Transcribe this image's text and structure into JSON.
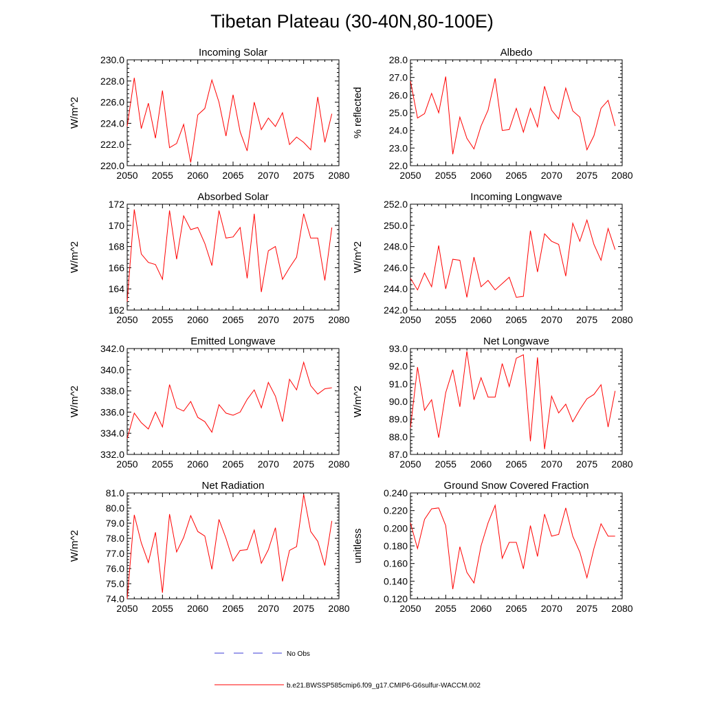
{
  "title": "Tibetan Plateau (30-40N,80-100E)",
  "legend": {
    "items": [
      {
        "label": "No Obs",
        "color": "#3b3bd6",
        "style": "dashed"
      },
      {
        "label": "b.e21.BWSSP585cmip6.f09_g17.CMIP6-G6sulfur-WACCM.002",
        "color": "#ff0000",
        "style": "solid"
      }
    ]
  },
  "chart_data": [
    {
      "type": "line",
      "title": "Incoming Solar",
      "ylabel": "W/m^2",
      "xlabel": "",
      "xlim": [
        2050,
        2080
      ],
      "ylim": [
        220.0,
        230.0
      ],
      "xticks": [
        "2050",
        "2055",
        "2060",
        "2065",
        "2070",
        "2075",
        "2080"
      ],
      "yticks": [
        "220.0",
        "222.0",
        "224.0",
        "226.0",
        "228.0",
        "230.0"
      ],
      "series": [
        {
          "color": "#ff0000",
          "x_start": 2050,
          "values": [
            223.7,
            228.3,
            223.5,
            225.9,
            222.6,
            227.1,
            221.7,
            222.1,
            223.9,
            220.3,
            224.8,
            225.4,
            228.1,
            226.0,
            222.8,
            226.7,
            223.2,
            221.4,
            226.0,
            223.4,
            224.5,
            223.7,
            225.0,
            222.0,
            222.7,
            222.2,
            221.5,
            226.5,
            222.2,
            224.9
          ]
        }
      ]
    },
    {
      "type": "line",
      "title": "Albedo",
      "ylabel": "% reflected",
      "xlabel": "",
      "xlim": [
        2050,
        2080
      ],
      "ylim": [
        22.0,
        28.0
      ],
      "xticks": [
        "2050",
        "2055",
        "2060",
        "2065",
        "2070",
        "2075",
        "2080"
      ],
      "yticks": [
        "22.0",
        "23.0",
        "24.0",
        "25.0",
        "26.0",
        "27.0",
        "28.0"
      ],
      "series": [
        {
          "color": "#ff0000",
          "x_start": 2050,
          "values": [
            26.8,
            24.7,
            24.95,
            26.1,
            25.0,
            27.05,
            22.65,
            24.75,
            23.55,
            22.95,
            24.25,
            25.15,
            26.95,
            24.0,
            24.05,
            25.25,
            23.9,
            25.25,
            24.2,
            26.5,
            25.15,
            24.65,
            26.4,
            25.1,
            24.75,
            22.9,
            23.7,
            25.25,
            25.7,
            24.25
          ]
        }
      ]
    },
    {
      "type": "line",
      "title": "Absorbed Solar",
      "ylabel": "W/m^2",
      "xlabel": "",
      "xlim": [
        2050,
        2080
      ],
      "ylim": [
        162,
        172
      ],
      "xticks": [
        "2050",
        "2055",
        "2060",
        "2065",
        "2070",
        "2075",
        "2080"
      ],
      "yticks": [
        "162",
        "164",
        "166",
        "168",
        "170",
        "172"
      ],
      "series": [
        {
          "color": "#ff0000",
          "x_start": 2050,
          "values": [
            162.8,
            171.5,
            167.3,
            166.5,
            166.3,
            164.9,
            171.4,
            166.8,
            170.9,
            169.6,
            169.8,
            168.3,
            166.2,
            171.4,
            168.8,
            168.9,
            169.8,
            165.0,
            171.1,
            163.7,
            167.6,
            168.0,
            164.9,
            166.0,
            167.0,
            171.1,
            168.8,
            168.8,
            164.8,
            169.8
          ]
        }
      ]
    },
    {
      "type": "line",
      "title": "Incoming Longwave",
      "ylabel": "W/m^2",
      "xlabel": "",
      "xlim": [
        2050,
        2080
      ],
      "ylim": [
        242.0,
        252.0
      ],
      "xticks": [
        "2050",
        "2055",
        "2060",
        "2065",
        "2070",
        "2075",
        "2080"
      ],
      "yticks": [
        "242.0",
        "244.0",
        "246.0",
        "248.0",
        "250.0",
        "252.0"
      ],
      "series": [
        {
          "color": "#ff0000",
          "x_start": 2050,
          "values": [
            245.0,
            243.9,
            245.5,
            244.2,
            248.1,
            244.0,
            246.8,
            246.7,
            243.2,
            247.0,
            244.2,
            244.8,
            243.9,
            244.5,
            245.1,
            243.2,
            243.3,
            249.5,
            245.6,
            249.2,
            248.5,
            248.2,
            245.2,
            250.2,
            248.5,
            250.5,
            248.2,
            246.7,
            249.7,
            247.7
          ]
        }
      ]
    },
    {
      "type": "line",
      "title": "Emitted Longwave",
      "ylabel": "W/m^2",
      "xlabel": "",
      "xlim": [
        2050,
        2080
      ],
      "ylim": [
        332.0,
        342.0
      ],
      "xticks": [
        "2050",
        "2055",
        "2060",
        "2065",
        "2070",
        "2075",
        "2080"
      ],
      "yticks": [
        "332.0",
        "334.0",
        "336.0",
        "338.0",
        "340.0",
        "342.0"
      ],
      "series": [
        {
          "color": "#ff0000",
          "x_start": 2050,
          "values": [
            333.5,
            335.9,
            335.0,
            334.4,
            336.0,
            334.6,
            338.6,
            336.4,
            336.1,
            337.0,
            335.5,
            335.1,
            334.1,
            336.7,
            335.9,
            335.7,
            336.0,
            337.2,
            338.1,
            336.4,
            338.8,
            337.5,
            335.1,
            339.1,
            338.1,
            340.7,
            338.5,
            337.7,
            338.2,
            338.3
          ]
        }
      ]
    },
    {
      "type": "line",
      "title": "Net Longwave",
      "ylabel": "W/m^2",
      "xlabel": "",
      "xlim": [
        2050,
        2080
      ],
      "ylim": [
        87.0,
        93.0
      ],
      "xticks": [
        "2050",
        "2055",
        "2060",
        "2065",
        "2070",
        "2075",
        "2080"
      ],
      "yticks": [
        "87.0",
        "88.0",
        "89.0",
        "90.0",
        "91.0",
        "92.0",
        "93.0"
      ],
      "series": [
        {
          "color": "#ff0000",
          "x_start": 2050,
          "values": [
            88.5,
            91.95,
            89.5,
            90.1,
            87.95,
            90.5,
            91.8,
            89.7,
            92.85,
            90.1,
            91.35,
            90.25,
            90.25,
            92.15,
            90.85,
            92.45,
            92.65,
            87.75,
            92.5,
            87.3,
            90.3,
            89.35,
            89.85,
            88.85,
            89.55,
            90.15,
            90.4,
            90.95,
            88.55,
            90.6
          ]
        }
      ]
    },
    {
      "type": "line",
      "title": "Net Radiation",
      "ylabel": "W/m^2",
      "xlabel": "",
      "xlim": [
        2050,
        2080
      ],
      "ylim": [
        74.0,
        81.0
      ],
      "xticks": [
        "2050",
        "2055",
        "2060",
        "2065",
        "2070",
        "2075",
        "2080"
      ],
      "yticks": [
        "74.0",
        "75.0",
        "76.0",
        "77.0",
        "78.0",
        "79.0",
        "80.0",
        "81.0"
      ],
      "series": [
        {
          "color": "#ff0000",
          "x_start": 2050,
          "values": [
            74.0,
            79.55,
            77.7,
            76.4,
            78.4,
            74.4,
            79.6,
            77.1,
            78.05,
            79.5,
            78.45,
            78.15,
            75.95,
            79.25,
            78.0,
            76.5,
            77.2,
            77.25,
            78.55,
            76.35,
            77.25,
            78.7,
            75.15,
            77.2,
            77.45,
            80.9,
            78.45,
            77.8,
            76.2,
            79.15
          ]
        }
      ]
    },
    {
      "type": "line",
      "title": "Ground Snow Covered Fraction",
      "ylabel": "unitless",
      "xlabel": "",
      "xlim": [
        2050,
        2080
      ],
      "ylim": [
        0.12,
        0.24
      ],
      "xticks": [
        "2050",
        "2055",
        "2060",
        "2065",
        "2070",
        "2075",
        "2080"
      ],
      "yticks": [
        "0.120",
        "0.140",
        "0.160",
        "0.180",
        "0.200",
        "0.220",
        "0.240"
      ],
      "series": [
        {
          "color": "#ff0000",
          "x_start": 2050,
          "values": [
            0.206,
            0.177,
            0.21,
            0.222,
            0.223,
            0.203,
            0.131,
            0.179,
            0.15,
            0.138,
            0.18,
            0.206,
            0.226,
            0.166,
            0.184,
            0.184,
            0.154,
            0.203,
            0.168,
            0.216,
            0.191,
            0.193,
            0.223,
            0.191,
            0.173,
            0.144,
            0.177,
            0.205,
            0.191,
            0.191
          ]
        }
      ]
    }
  ]
}
